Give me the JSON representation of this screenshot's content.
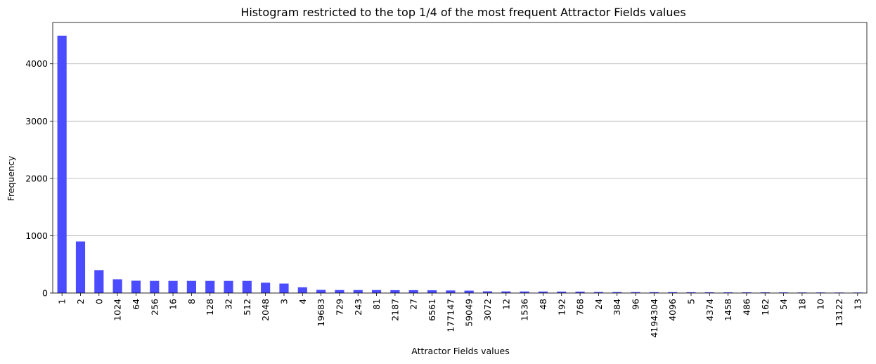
{
  "chart_data": {
    "type": "bar",
    "title": "Histogram restricted to the top 1/4 of the most frequent Attractor Fields values",
    "xlabel": "Attractor Fields values",
    "ylabel": "Frequency",
    "ylim": [
      0,
      4720
    ],
    "yticks": [
      0,
      1000,
      2000,
      3000,
      4000
    ],
    "grid": "y",
    "bar_color": "#4b4bff",
    "categories": [
      "1",
      "2",
      "0",
      "1024",
      "64",
      "256",
      "16",
      "8",
      "128",
      "32",
      "512",
      "2048",
      "3",
      "4",
      "19683",
      "729",
      "243",
      "81",
      "2187",
      "27",
      "6561",
      "177147",
      "59049",
      "3072",
      "12",
      "1536",
      "48",
      "192",
      "768",
      "24",
      "384",
      "96",
      "4194304",
      "4096",
      "5",
      "4374",
      "1458",
      "486",
      "162",
      "54",
      "18",
      "10",
      "13122",
      "13"
    ],
    "values": [
      4490,
      900,
      400,
      240,
      215,
      212,
      212,
      212,
      212,
      212,
      212,
      180,
      165,
      100,
      55,
      52,
      52,
      52,
      50,
      50,
      48,
      45,
      42,
      30,
      28,
      27,
      26,
      25,
      24,
      18,
      17,
      16,
      15,
      15,
      14,
      13,
      12,
      12,
      12,
      11,
      10,
      10,
      9,
      9
    ]
  }
}
